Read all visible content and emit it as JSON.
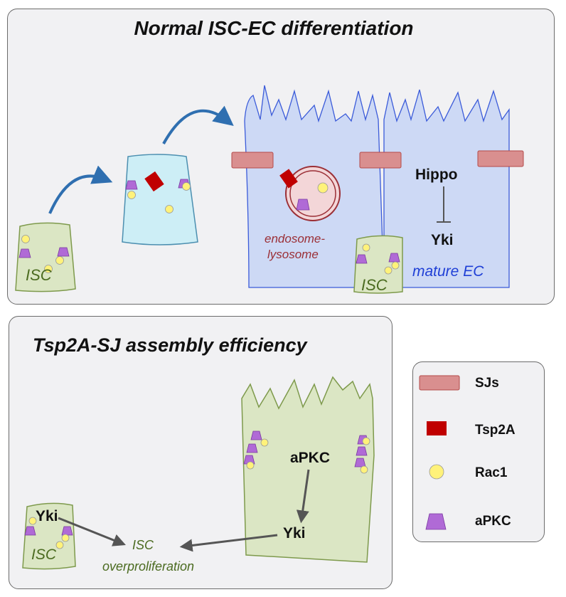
{
  "top_panel": {
    "title": "Normal ISC-EC differentiation",
    "isc_label": "ISC",
    "endosome_line1": "endosome-",
    "endosome_line2": "lysosome",
    "hippo_label": "Hippo",
    "yki_label": "Yki",
    "isc_label_2": "ISC",
    "mature_ec_label": "mature EC"
  },
  "bottom_panel": {
    "title": "Tsp2A-SJ assembly efficiency",
    "apkc_label": "aPKC",
    "yki_ec_label": "Yki",
    "yki_isc_label": "Yki",
    "isc_label": "ISC",
    "overprolif_line1": "ISC",
    "overprolif_line2": "overproliferation"
  },
  "legend": {
    "items": [
      {
        "label": "SJs",
        "shape": "rounded-rect",
        "color": "#d98f8f"
      },
      {
        "label": "Tsp2A",
        "shape": "rect",
        "color": "#c00000"
      },
      {
        "label": "Rac1",
        "shape": "circle",
        "color": "#fff27a"
      },
      {
        "label": "aPKC",
        "shape": "trapezoid",
        "color": "#b06ad6"
      }
    ]
  },
  "colors": {
    "isc_fill": "#dbe6c4",
    "isc_stroke": "#7e9a4c",
    "progenitor_fill": "#cdeef6",
    "ec_fill": "#cdd9f5",
    "ec_stroke": "#3b5bd9",
    "arrow_blue": "#2f6fb0",
    "sj_fill": "#d98f8f",
    "tsp2a": "#c00000",
    "rac1": "#fff27a",
    "apkc": "#b06ad6"
  }
}
